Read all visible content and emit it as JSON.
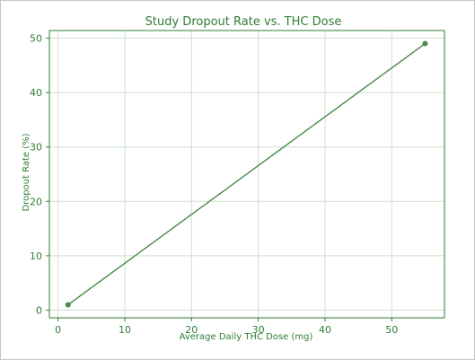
{
  "chart_data": {
    "type": "line",
    "title": "Study Dropout Rate vs. THC Dose",
    "xlabel": "Average Daily THC Dose (mg)",
    "ylabel": "Dropout Rate (%)",
    "xlim": [
      -1.3,
      57.9
    ],
    "ylim": [
      -1.4,
      51.4
    ],
    "xticks": [
      0,
      10,
      20,
      30,
      40,
      50
    ],
    "yticks": [
      0,
      10,
      20,
      30,
      40,
      50
    ],
    "grid": true,
    "series": [
      {
        "x": [
          1.5,
          55
        ],
        "y": [
          1,
          49
        ]
      }
    ],
    "colors": {
      "line": "#4a8a4a",
      "grid": "#cfe0cf",
      "axis": "#2e7d32",
      "text": "#2e7d32"
    }
  }
}
